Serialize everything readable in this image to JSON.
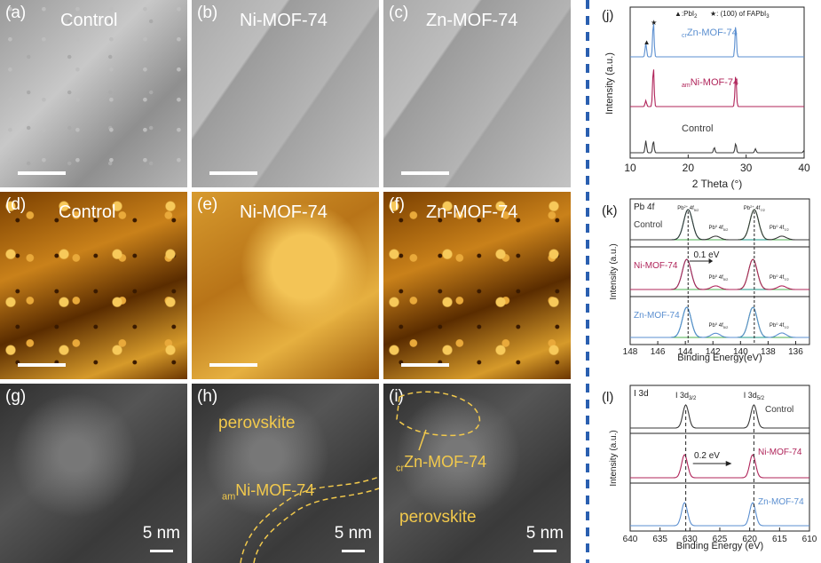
{
  "panels": {
    "a": {
      "label": "(a)",
      "title": "Control"
    },
    "b": {
      "label": "(b)",
      "title": "Ni-MOF-74"
    },
    "c": {
      "label": "(c)",
      "title": "Zn-MOF-74"
    },
    "d": {
      "label": "(d)",
      "title": "Control"
    },
    "e": {
      "label": "(e)",
      "title": "Ni-MOF-74"
    },
    "f": {
      "label": "(f)",
      "title": "Zn-MOF-74"
    },
    "g": {
      "label": "(g)",
      "scale": "5 nm"
    },
    "h": {
      "label": "(h)",
      "scale": "5 nm",
      "annot_perovskite": "perovskite",
      "annot_sub": "am",
      "annot_mof": "Ni-MOF-74"
    },
    "i": {
      "label": "(i)",
      "scale": "5 nm",
      "annot_perovskite": "perovskite",
      "annot_sub": "cr",
      "annot_mof": "Zn-MOF-74"
    }
  },
  "colors": {
    "control": "#3a3a3a",
    "ni": "#b0245a",
    "zn": "#5b8fd0",
    "pb4f_green": "#4caf50",
    "pb4f_teal": "#1f9a8a"
  },
  "chart_data": [
    {
      "type": "line",
      "panel": "(j)",
      "legend": {
        "pbi2": "▲:PbI",
        "pbi2_sub": "2",
        "fapbi3": "★: (100) of FAPbI",
        "fapbi3_sub": "3"
      },
      "xlabel": "2 Theta (°)",
      "ylabel": "Intensity (a.u.)",
      "xlim": [
        10,
        40
      ],
      "xticks": [
        "10",
        "20",
        "30",
        "40"
      ],
      "series": [
        {
          "name": "Zn-MOF-74",
          "prefix": "cr",
          "peaks": [
            [
              12.7,
              0.4
            ],
            [
              14.0,
              1.0
            ],
            [
              28.2,
              0.9
            ]
          ]
        },
        {
          "name": "Ni-MOF-74",
          "prefix": "am",
          "peaks": [
            [
              12.7,
              0.15
            ],
            [
              14.0,
              1.0
            ],
            [
              28.2,
              0.8
            ]
          ]
        },
        {
          "name": "Control",
          "prefix": "",
          "peaks": [
            [
              12.7,
              0.45
            ],
            [
              14.0,
              0.45
            ],
            [
              24.5,
              0.2
            ],
            [
              28.2,
              0.35
            ],
            [
              31.6,
              0.15
            ],
            [
              40,
              0.1
            ]
          ]
        }
      ]
    },
    {
      "type": "line",
      "panel": "(k)",
      "subtitle": "Pb 4f",
      "xlabel": "Binding Energy(eV)",
      "ylabel": "Intensity (a.u.)",
      "xlim": [
        148,
        135
      ],
      "xticks": [
        "148",
        "146",
        "144",
        "142",
        "140",
        "138",
        "136"
      ],
      "peak_labels": {
        "a1": "Pb",
        "a1_sup": "2+",
        "a1_rest": " 4f",
        "a1_sub": "5/2",
        "a2": "Pb",
        "a2_sup": "2+",
        "a2_rest": " 4f",
        "a2_sub": "7/2",
        "b1": "Pb",
        "b1_sup": "0",
        "b1_rest": " 4f",
        "b1_sub": "5/2",
        "b2": "Pb",
        "b2_sup": "0",
        "b2_rest": " 4f",
        "b2_sub": "7/2"
      },
      "shift": "0.1 eV",
      "series": [
        {
          "name": "Control",
          "peaks": [
            [
              143.8,
              1.0
            ],
            [
              139.0,
              1.0
            ],
            [
              141.8,
              0.12
            ],
            [
              137.0,
              0.12
            ]
          ]
        },
        {
          "name": "Ni-MOF-74",
          "peaks": [
            [
              143.9,
              1.0
            ],
            [
              139.1,
              1.0
            ],
            [
              141.8,
              0.12
            ],
            [
              137.0,
              0.12
            ]
          ]
        },
        {
          "name": "Zn-MOF-74",
          "peaks": [
            [
              143.9,
              1.0
            ],
            [
              139.1,
              1.0
            ],
            [
              141.8,
              0.14
            ],
            [
              137.0,
              0.15
            ]
          ]
        }
      ]
    },
    {
      "type": "line",
      "panel": "(l)",
      "subtitle": "I 3d",
      "xlabel": "Binding Energy (eV)",
      "ylabel": "Intensity (a.u.)",
      "xlim": [
        640,
        610
      ],
      "xticks": [
        "640",
        "635",
        "630",
        "625",
        "620",
        "615",
        "610"
      ],
      "peak_labels": {
        "a": "I 3d",
        "a_sub": "3/2",
        "b": "I 3d",
        "b_sub": "5/2"
      },
      "shift": "0.2 eV",
      "series": [
        {
          "name": "Control",
          "peaks": [
            [
              630.7,
              1.0
            ],
            [
              619.3,
              1.0
            ]
          ]
        },
        {
          "name": "Ni-MOF-74",
          "peaks": [
            [
              630.9,
              1.0
            ],
            [
              619.5,
              1.0
            ]
          ]
        },
        {
          "name": "Zn-MOF-74",
          "peaks": [
            [
              630.9,
              1.0
            ],
            [
              619.5,
              1.0
            ]
          ]
        }
      ]
    }
  ]
}
